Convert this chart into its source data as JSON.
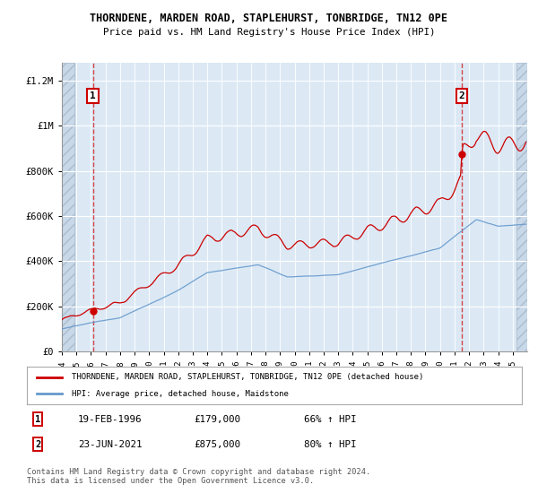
{
  "title1": "THORNDENE, MARDEN ROAD, STAPLEHURST, TONBRIDGE, TN12 0PE",
  "title2": "Price paid vs. HM Land Registry's House Price Index (HPI)",
  "ylim": [
    0,
    1280000
  ],
  "yticks": [
    0,
    200000,
    400000,
    600000,
    800000,
    1000000,
    1200000
  ],
  "ytick_labels": [
    "£0",
    "£200K",
    "£400K",
    "£600K",
    "£800K",
    "£1M",
    "£1.2M"
  ],
  "xlim": [
    1994.0,
    2026.0
  ],
  "xticks": [
    1994,
    1995,
    1996,
    1997,
    1998,
    1999,
    2000,
    2001,
    2002,
    2003,
    2004,
    2005,
    2006,
    2007,
    2008,
    2009,
    2010,
    2011,
    2012,
    2013,
    2014,
    2015,
    2016,
    2017,
    2018,
    2019,
    2020,
    2021,
    2022,
    2023,
    2024,
    2025
  ],
  "background_color": "#dce9f5",
  "grid_color": "#ffffff",
  "transaction1": {
    "year": 1996.13,
    "price": 179000,
    "label": "1"
  },
  "transaction2": {
    "year": 2021.48,
    "price": 875000,
    "label": "2"
  },
  "red_color": "#cc0000",
  "blue_color": "#6699cc",
  "legend_entries": [
    "THORNDENE, MARDEN ROAD, STAPLEHURST, TONBRIDGE, TN12 0PE (detached house)",
    "HPI: Average price, detached house, Maidstone"
  ],
  "note1_date": "19-FEB-1996",
  "note1_price": "£179,000",
  "note1_hpi": "66% ↑ HPI",
  "note2_date": "23-JUN-2021",
  "note2_price": "£875,000",
  "note2_hpi": "80% ↑ HPI",
  "footer": "Contains HM Land Registry data © Crown copyright and database right 2024.\nThis data is licensed under the Open Government Licence v3.0."
}
